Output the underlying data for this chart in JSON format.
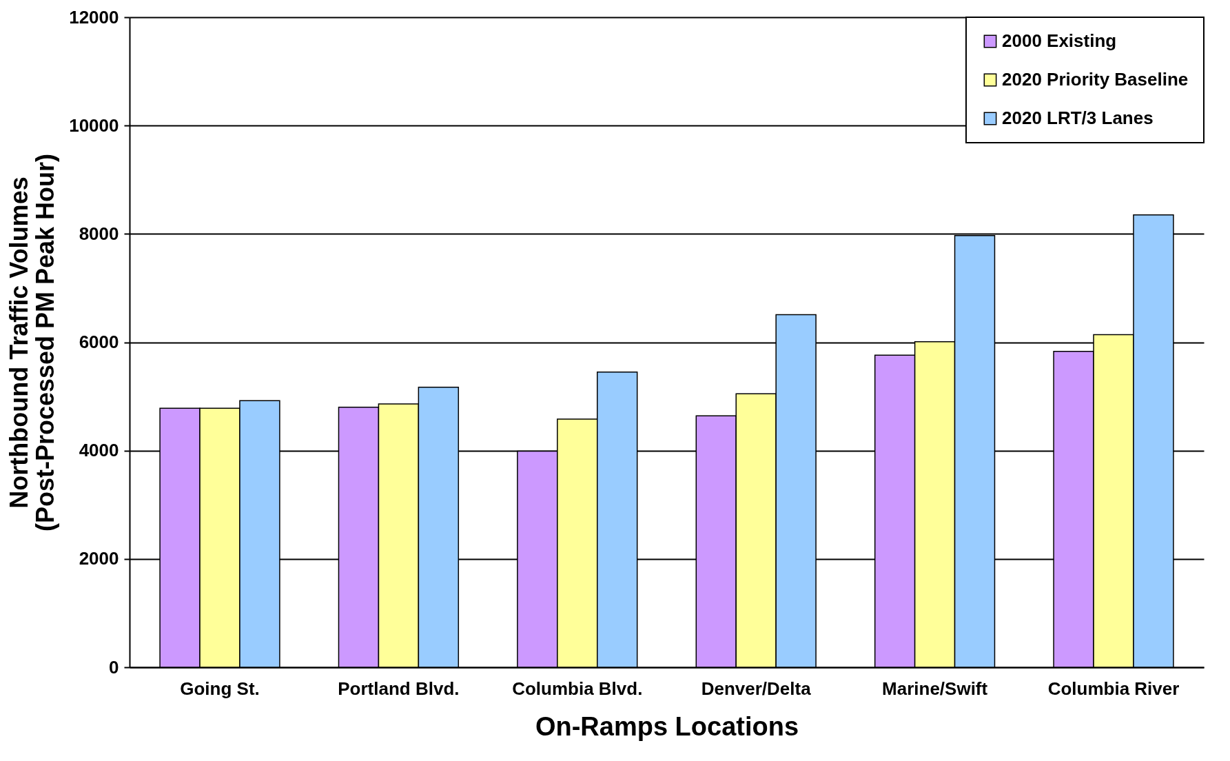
{
  "chart_data": {
    "type": "bar",
    "xlabel": "On-Ramps Locations",
    "ylabel": "Northbound Traffic Volumes\n(Post-Processed PM Peak Hour)",
    "categories": [
      "Going St.",
      "Portland Blvd.",
      "Columbia Blvd.",
      "Denver/Delta",
      "Marine/Swift",
      "Columbia River"
    ],
    "series": [
      {
        "name": "2000 Existing",
        "color": "#cc99ff",
        "values": [
          4780,
          4800,
          3990,
          4640,
          5760,
          5830
        ]
      },
      {
        "name": "2020 Priority Baseline",
        "color": "#ffff99",
        "values": [
          4780,
          4860,
          4580,
          5050,
          6010,
          6140
        ]
      },
      {
        "name": "2020 LRT/3 Lanes",
        "color": "#99ccff",
        "values": [
          4920,
          5170,
          5450,
          6510,
          7970,
          8350
        ]
      }
    ],
    "ylim": [
      0,
      12000
    ],
    "yticks": [
      0,
      2000,
      4000,
      6000,
      8000,
      10000,
      12000
    ],
    "grid": "y",
    "legend": "top right"
  }
}
